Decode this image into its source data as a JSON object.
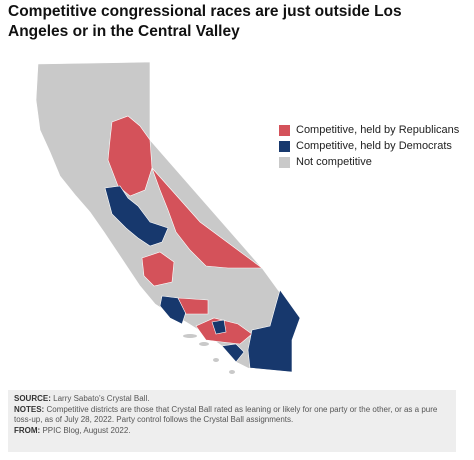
{
  "title": "Competitive congressional races are just outside Los Angeles or in the Central Valley",
  "legend": [
    {
      "label": "Competitive, held by Republicans",
      "color": "#d4525a"
    },
    {
      "label": "Competitive, held by Democrats",
      "color": "#17386d"
    },
    {
      "label": "Not competitive",
      "color": "#c9c9c9"
    }
  ],
  "footer": {
    "source_label": "SOURCE:",
    "source": "Larry Sabato’s Crystal Ball.",
    "notes_label": "NOTES:",
    "notes": "Competitive districts are those that Crystal Ball rated as leaning or likely for one party or the other, or as a pure toss-up, as of July 28, 2022. Party control follows the Crystal Ball assignments.",
    "from_label": "FROM:",
    "from": "PPIC Blog, August 2022."
  }
}
